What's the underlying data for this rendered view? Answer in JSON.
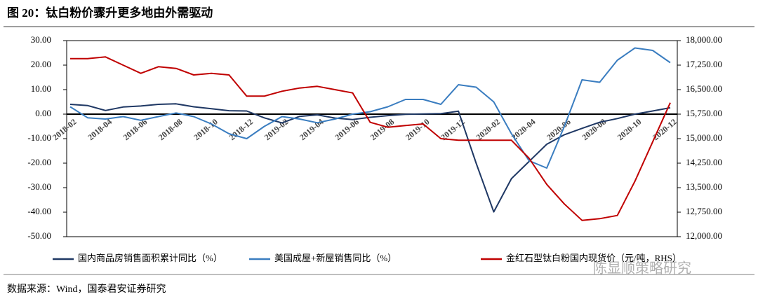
{
  "chart_data": {
    "type": "line",
    "title": "图 20：钛白粉价骤升更多地由外需驱动",
    "source": "数据来源：Wind，国泰君安证券研究",
    "watermark": "陈显顺策略研究",
    "categories": [
      "2018-02",
      null,
      "2018-04",
      null,
      "2018-06",
      null,
      "2018-08",
      null,
      "2018-10",
      null,
      "2018-12",
      null,
      "2019-02",
      null,
      "2019-04",
      null,
      "2019-06",
      null,
      "2019-08",
      null,
      "2019-10",
      null,
      "2019-12",
      null,
      "2020-02",
      null,
      "2020-04",
      null,
      "2020-06",
      null,
      "2020-08",
      null,
      "2020-10",
      null,
      "2020-12"
    ],
    "ylim": [
      -50,
      30
    ],
    "yticks": [
      {
        "value": -50,
        "label": "-50.00"
      },
      {
        "value": -40,
        "label": "-40.00"
      },
      {
        "value": -30,
        "label": "-30.00"
      },
      {
        "value": -20,
        "label": "-20.00"
      },
      {
        "value": -10,
        "label": "-10.00"
      },
      {
        "value": 0,
        "label": "0.00"
      },
      {
        "value": 10,
        "label": "10.00"
      },
      {
        "value": 20,
        "label": "20.00"
      },
      {
        "value": 30,
        "label": "30.00"
      }
    ],
    "y2lim": [
      12000,
      18000
    ],
    "y2ticks": [
      {
        "value": 12000,
        "label": "12,000.00"
      },
      {
        "value": 12750,
        "label": "12,750.00"
      },
      {
        "value": 13500,
        "label": "13,500.00"
      },
      {
        "value": 14250,
        "label": "14,250.00"
      },
      {
        "value": 15000,
        "label": "15,000.00"
      },
      {
        "value": 15750,
        "label": "15,750.00"
      },
      {
        "value": 16500,
        "label": "16,500.00"
      },
      {
        "value": 17250,
        "label": "17,250.00"
      },
      {
        "value": 18000,
        "label": "18,000.00"
      }
    ],
    "series": [
      {
        "name": "国内商品房销售面积累计同比（%）",
        "color": "#1f3864",
        "values": [
          4,
          3.5,
          1.5,
          2.9,
          3.3,
          4,
          4.2,
          3,
          2.2,
          1.4,
          1.3,
          -1.5,
          -3.6,
          -0.9,
          -0.3,
          -1.6,
          -2.2,
          -1.3,
          -0.6,
          -0.1,
          0.1,
          0.2,
          1.2,
          -20,
          -39.9,
          -26.3,
          -19.3,
          -12.3,
          -8.4,
          -5.8,
          -3.3,
          -1.8,
          0,
          1.3,
          2.6
        ]
      },
      {
        "name": "美国成屋+新屋销售同比（%）",
        "color": "#3a7dc0",
        "values": [
          3,
          -1.5,
          -2,
          -1,
          -2.5,
          -1,
          0.5,
          -1,
          -4,
          -8,
          -10,
          -5,
          -1,
          -2,
          -3.5,
          -2,
          0,
          1,
          3,
          6,
          6,
          4,
          12,
          11,
          5,
          -8,
          -19,
          -22,
          -5,
          14,
          13,
          22,
          27,
          26,
          21
        ]
      },
      {
        "name": "金红石型钛白粉国内现货价（元/吨，RHS）",
        "color": "#c00000",
        "axis": "y2",
        "values": [
          17450,
          17450,
          17500,
          17250,
          17000,
          17200,
          17150,
          16950,
          17000,
          16950,
          16300,
          16300,
          16450,
          16550,
          16600,
          16500,
          16400,
          15500,
          15350,
          15400,
          15450,
          15000,
          14950,
          14950,
          14950,
          14950,
          14400,
          13600,
          13000,
          12500,
          12550,
          12650,
          13700,
          14900,
          16100
        ]
      }
    ]
  }
}
